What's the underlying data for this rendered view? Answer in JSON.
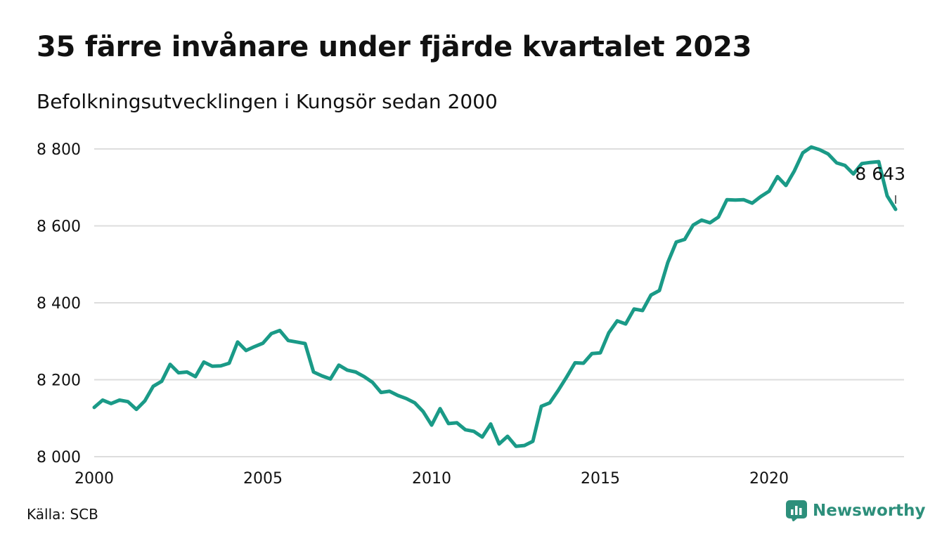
{
  "title": "35 färre invånare under fjärde kvartalet 2023",
  "subtitle": "Befolkningsutvecklingen i Kungsör sedan 2000",
  "source": "Källa: SCB",
  "brand": {
    "name": "Newsworthy",
    "color": "#2d8f7b",
    "icon": "bar-chart-icon"
  },
  "colors": {
    "line": "#1a9a87",
    "grid": "#dddddd",
    "text": "#111111"
  },
  "chart_data": {
    "type": "line",
    "title": "35 färre invånare under fjärde kvartalet 2023",
    "subtitle": "Befolkningsutvecklingen i Kungsör sedan 2000",
    "xlabel": "",
    "ylabel": "",
    "xlim": [
      2000,
      2024
    ],
    "ylim": [
      8000,
      8800
    ],
    "y_ticks": [
      8000,
      8200,
      8400,
      8600,
      8800
    ],
    "y_tick_labels": [
      "8 000",
      "8 200",
      "8 400",
      "8 600",
      "8 800"
    ],
    "x_ticks": [
      2000,
      2005,
      2010,
      2015,
      2020
    ],
    "x_tick_labels": [
      "2000",
      "2005",
      "2010",
      "2015",
      "2020"
    ],
    "grid": true,
    "last_label": "8 643",
    "x": [
      2000.0,
      2000.25,
      2000.5,
      2000.75,
      2001.0,
      2001.25,
      2001.5,
      2001.75,
      2002.0,
      2002.25,
      2002.5,
      2002.75,
      2003.0,
      2003.25,
      2003.5,
      2003.75,
      2004.0,
      2004.25,
      2004.5,
      2004.75,
      2005.0,
      2005.25,
      2005.5,
      2005.75,
      2006.0,
      2006.25,
      2006.5,
      2006.75,
      2007.0,
      2007.25,
      2007.5,
      2007.75,
      2008.0,
      2008.25,
      2008.5,
      2008.75,
      2009.0,
      2009.25,
      2009.5,
      2009.75,
      2010.0,
      2010.25,
      2010.5,
      2010.75,
      2011.0,
      2011.25,
      2011.5,
      2011.75,
      2012.0,
      2012.25,
      2012.5,
      2012.75,
      2013.0,
      2013.25,
      2013.5,
      2013.75,
      2014.0,
      2014.25,
      2014.5,
      2014.75,
      2015.0,
      2015.25,
      2015.5,
      2015.75,
      2016.0,
      2016.25,
      2016.5,
      2016.75,
      2017.0,
      2017.25,
      2017.5,
      2017.75,
      2018.0,
      2018.25,
      2018.5,
      2018.75,
      2019.0,
      2019.25,
      2019.5,
      2019.75,
      2020.0,
      2020.25,
      2020.5,
      2020.75,
      2021.0,
      2021.25,
      2021.5,
      2021.75,
      2022.0,
      2022.25,
      2022.5,
      2022.75,
      2023.0,
      2023.25,
      2023.5,
      2023.75
    ],
    "series": [
      {
        "values": [
          8128,
          8147,
          8138,
          8147,
          8143,
          8123,
          8145,
          8183,
          8196,
          8240,
          8218,
          8220,
          8208,
          8246,
          8235,
          8236,
          8243,
          8298,
          8276,
          8286,
          8295,
          8320,
          8328,
          8302,
          8298,
          8294,
          8220,
          8210,
          8202,
          8238,
          8225,
          8220,
          8208,
          8193,
          8167,
          8170,
          8159,
          8151,
          8140,
          8117,
          8082,
          8125,
          8086,
          8088,
          8070,
          8066,
          8051,
          8085,
          8033,
          8053,
          8027,
          8029,
          8040,
          8131,
          8140,
          8172,
          8207,
          8244,
          8243,
          8268,
          8270,
          8322,
          8353,
          8345,
          8384,
          8380,
          8420,
          8432,
          8505,
          8558,
          8565,
          8602,
          8615,
          8608,
          8623,
          8668,
          8667,
          8668,
          8659,
          8676,
          8690,
          8728,
          8705,
          8743,
          8790,
          8805,
          8798,
          8787,
          8764,
          8757,
          8735,
          8762,
          8765,
          8767,
          8678,
          8643
        ]
      }
    ]
  }
}
